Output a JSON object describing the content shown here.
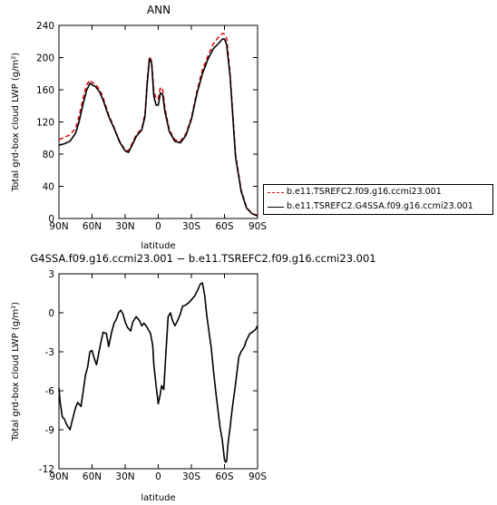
{
  "chart_data": [
    {
      "type": "line",
      "title": "ANN",
      "xlabel": "latitude",
      "ylabel": "Total grd-box cloud LWP (g/m²)",
      "xlim": [
        90,
        -90
      ],
      "ylim": [
        0,
        240
      ],
      "yticks": [
        0,
        40,
        80,
        120,
        160,
        200,
        240
      ],
      "xticks": [
        90,
        60,
        30,
        0,
        -30,
        -60,
        -90
      ],
      "xtick_labels": [
        "90N",
        "60N",
        "30N",
        "0",
        "30S",
        "60S",
        "90S"
      ],
      "legend_position": "right",
      "x": [
        90,
        85,
        80,
        75,
        72,
        68,
        65,
        62,
        60,
        57,
        53,
        50,
        45,
        40,
        35,
        30,
        27,
        23,
        20,
        15,
        12,
        10,
        8,
        6,
        4,
        2,
        0,
        -2,
        -4,
        -6,
        -10,
        -15,
        -20,
        -25,
        -30,
        -35,
        -40,
        -45,
        -50,
        -55,
        -58,
        -60,
        -62,
        -65,
        -70,
        -75,
        -80,
        -85,
        -90
      ],
      "series": [
        {
          "name": "b.e11.TSREFC2.f09.g16.ccmi23.001",
          "color": "#e01010",
          "dash": true,
          "values": [
            98,
            101,
            104,
            112,
            126,
            150,
            166,
            172,
            169,
            167,
            160,
            150,
            129,
            113,
            96,
            85,
            84,
            95,
            104,
            112,
            130,
            172,
            201,
            196,
            158,
            149,
            149,
            163,
            160,
            138,
            110,
            98,
            96,
            105,
            125,
            158,
            185,
            202,
            217,
            226,
            230,
            229,
            224,
            182,
            80,
            36,
            14,
            6,
            4
          ]
        },
        {
          "name": "b.e11.TSREFC2.G4SSA.f09.g16.ccmi23.001",
          "color": "#000000",
          "dash": false,
          "values": [
            91,
            93,
            96,
            106,
            119,
            143,
            159,
            168,
            166,
            164,
            157,
            147,
            127,
            112,
            95,
            84,
            82,
            93,
            102,
            110,
            127,
            167,
            199,
            193,
            152,
            141,
            141,
            156,
            154,
            133,
            108,
            96,
            94,
            103,
            123,
            155,
            180,
            198,
            211,
            218,
            223,
            223,
            216,
            178,
            77,
            34,
            13,
            6,
            3
          ]
        }
      ]
    },
    {
      "type": "line",
      "title": "G4SSA.f09.g16.ccmi23.001 − b.e11.TSREFC2.f09.g16.ccmi23.001",
      "xlabel": "latitude",
      "ylabel": "Total grd-box cloud LWP (g/m²)",
      "xlim": [
        90,
        -90
      ],
      "ylim": [
        -12,
        3
      ],
      "yticks": [
        -12,
        -9,
        -6,
        -3,
        0,
        3
      ],
      "xticks": [
        90,
        60,
        30,
        0,
        -30,
        -60,
        -90
      ],
      "xtick_labels": [
        "90N",
        "60N",
        "30N",
        "0",
        "30S",
        "60S",
        "90S"
      ],
      "x": [
        90,
        89,
        87,
        85,
        83,
        80,
        78,
        75,
        73,
        70,
        68,
        66,
        64,
        62,
        60,
        58,
        56,
        53,
        50,
        47,
        45,
        42,
        40,
        38,
        36,
        34,
        32,
        30,
        28,
        25,
        23,
        20,
        17,
        15,
        13,
        11,
        9,
        7,
        5,
        4,
        2,
        0,
        -2,
        -3,
        -5,
        -7,
        -9,
        -11,
        -13,
        -15,
        -17,
        -20,
        -22,
        -25,
        -28,
        -30,
        -33,
        -36,
        -38,
        -40,
        -42,
        -44,
        -46,
        -48,
        -50,
        -52,
        -54,
        -56,
        -58,
        -60,
        -61,
        -62,
        -63,
        -65,
        -67,
        -70,
        -73,
        -75,
        -78,
        -80,
        -83,
        -85,
        -88,
        -90
      ],
      "series": [
        {
          "name": "",
          "color": "#000000",
          "dash": false,
          "values": [
            -5.8,
            -6.8,
            -8.0,
            -8.2,
            -8.6,
            -9.0,
            -8.3,
            -7.3,
            -6.9,
            -7.2,
            -6.0,
            -4.8,
            -4.2,
            -3.0,
            -2.9,
            -3.5,
            -4.0,
            -2.7,
            -1.5,
            -1.6,
            -2.6,
            -1.4,
            -0.8,
            -0.5,
            0.0,
            0.2,
            -0.1,
            -0.7,
            -1.1,
            -1.4,
            -0.7,
            -0.3,
            -0.6,
            -1.0,
            -0.8,
            -1.0,
            -1.3,
            -1.6,
            -2.5,
            -4.0,
            -5.6,
            -7.0,
            -6.2,
            -5.6,
            -5.9,
            -3.0,
            -0.3,
            0.0,
            -0.6,
            -1.0,
            -0.7,
            -0.1,
            0.5,
            0.6,
            0.8,
            1.0,
            1.3,
            1.8,
            2.2,
            2.3,
            1.4,
            -0.2,
            -1.5,
            -2.7,
            -4.4,
            -6.0,
            -7.4,
            -8.8,
            -9.8,
            -11.3,
            -11.5,
            -11.4,
            -10.2,
            -8.9,
            -7.4,
            -5.5,
            -3.4,
            -3.0,
            -2.6,
            -2.1,
            -1.6,
            -1.5,
            -1.3,
            -1.0
          ]
        }
      ]
    }
  ]
}
